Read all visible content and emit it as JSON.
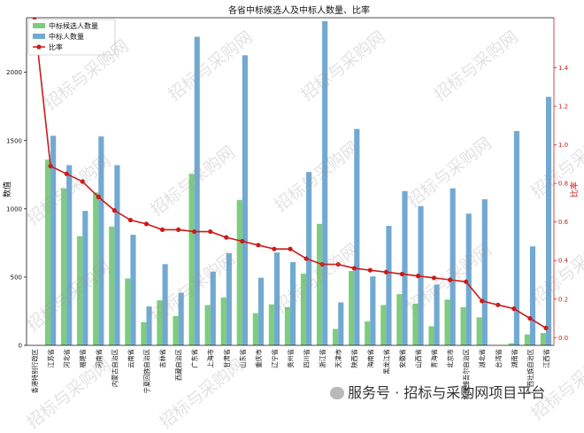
{
  "chart_data": {
    "type": "bar",
    "title": "各省中标候选人及中标人数量、比率",
    "ylabel": "数值",
    "y2label": "比率",
    "ylim": [
      0,
      2400
    ],
    "y2lim": [
      -0.04,
      1.66
    ],
    "yticks": [
      0,
      500,
      1000,
      1500,
      2000
    ],
    "y2ticks": [
      0.0,
      0.2,
      0.4,
      0.6,
      0.8,
      1.0,
      1.2,
      1.4
    ],
    "categories": [
      "香港特别行政区",
      "江苏省",
      "河北省",
      "福建省",
      "河南省",
      "内蒙古自治区",
      "云南省",
      "宁夏回族自治区",
      "吉林省",
      "西藏自治区",
      "广东省",
      "上海市",
      "甘肃省",
      "山东省",
      "重庆市",
      "辽宁省",
      "贵州省",
      "四川省",
      "浙江省",
      "天津市",
      "陕西省",
      "海南省",
      "黑龙江省",
      "安徽省",
      "山西省",
      "青海省",
      "北京市",
      "新疆维吾尔自治区",
      "湖北省",
      "台湾省",
      "湖南省",
      "广西壮族自治区",
      "江西省"
    ],
    "series": [
      {
        "name": "中标候选人数量",
        "color": "#7ccd7c",
        "values": [
          0,
          1360,
          1150,
          800,
          1120,
          870,
          490,
          170,
          330,
          215,
          1255,
          295,
          350,
          1065,
          235,
          300,
          280,
          525,
          890,
          120,
          545,
          175,
          295,
          375,
          305,
          140,
          335,
          280,
          205,
          0,
          15,
          80,
          90
        ]
      },
      {
        "name": "中标人数量",
        "color": "#72a9d2",
        "values": [
          0,
          1535,
          1320,
          985,
          1530,
          1320,
          810,
          285,
          595,
          385,
          2260,
          540,
          675,
          2125,
          495,
          680,
          610,
          1270,
          2375,
          315,
          1585,
          505,
          875,
          1130,
          1020,
          445,
          1150,
          965,
          1070,
          0,
          1570,
          725,
          1820
        ]
      },
      {
        "name": "比率",
        "color": "#cc1a1a",
        "type": "line",
        "values": [
          1.65,
          0.89,
          0.85,
          0.81,
          0.73,
          0.66,
          0.61,
          0.59,
          0.56,
          0.56,
          0.55,
          0.55,
          0.52,
          0.5,
          0.48,
          0.46,
          0.46,
          0.41,
          0.38,
          0.38,
          0.36,
          0.35,
          0.34,
          0.33,
          0.32,
          0.31,
          0.3,
          0.29,
          0.19,
          0.17,
          0.15,
          0.1,
          0.05
        ]
      }
    ],
    "legend_position": "top-left",
    "grid": false
  },
  "watermark": "招标与采购网",
  "footer": "服务号 · 招标与采购网项目平台"
}
